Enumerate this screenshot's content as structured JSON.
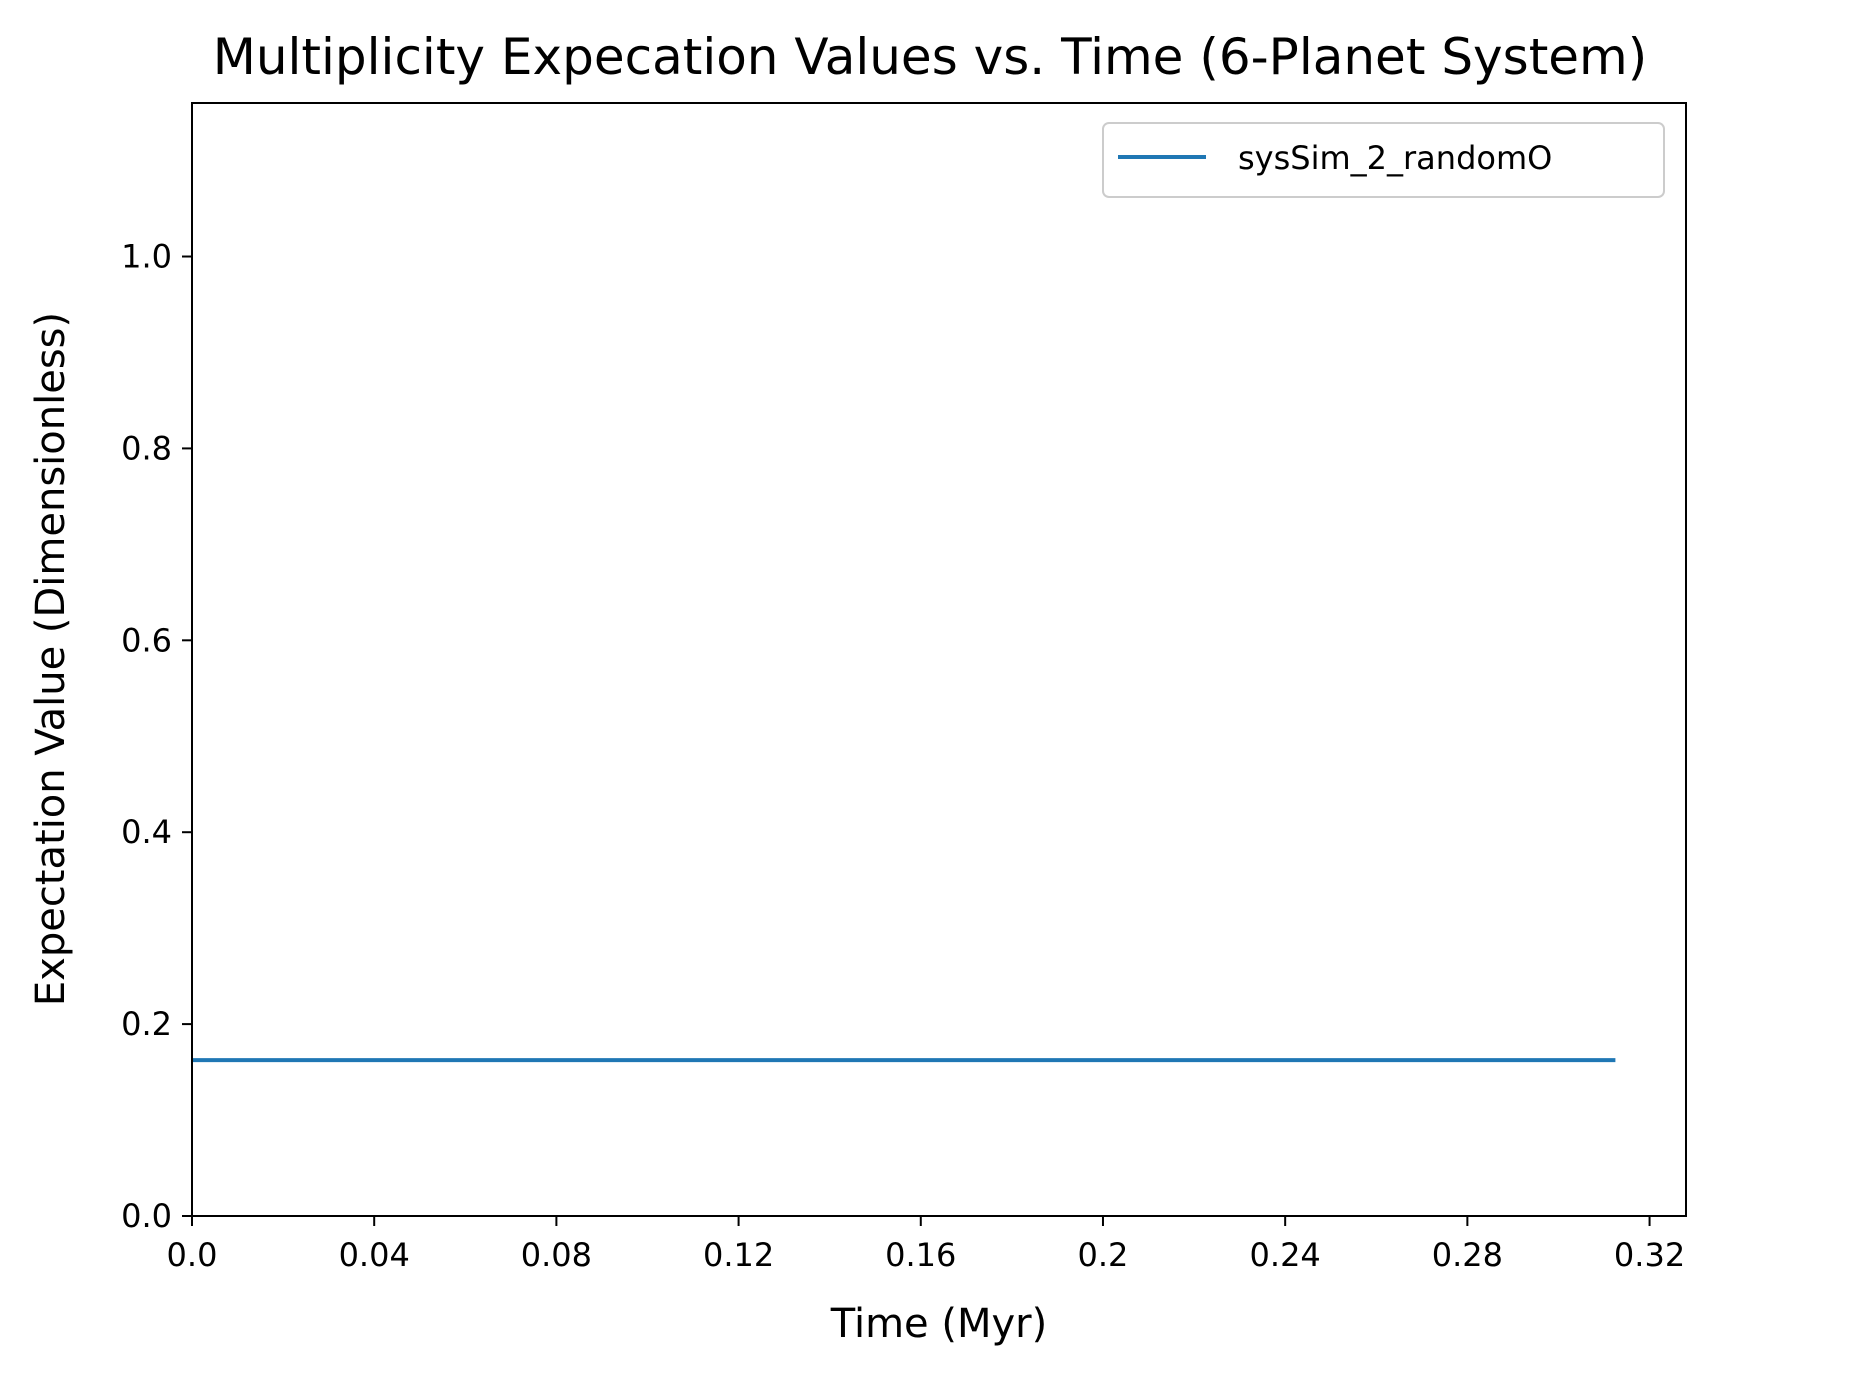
{
  "chart_data": {
    "type": "line",
    "title": "Multiplicity Expecation Values vs. Time (6-Planet System)",
    "xlabel": "Time (Myr)",
    "ylabel": "Expectation Value (Dimensionless)",
    "xlim": [
      0,
      0.328
    ],
    "ylim": [
      0,
      1.16
    ],
    "xticks": [
      0,
      0.04,
      0.08,
      0.12,
      0.16,
      0.2,
      0.24,
      0.28,
      0.32
    ],
    "xtick_labels": [
      "0.0",
      "0.04",
      "0.08",
      "0.12",
      "0.16",
      "0.2",
      "0.24",
      "0.28",
      "0.32"
    ],
    "yticks": [
      0,
      0.2,
      0.4,
      0.6,
      0.8,
      1.0
    ],
    "ytick_labels": [
      "0.0",
      "0.2",
      "0.4",
      "0.6",
      "0.8",
      "1.0"
    ],
    "grid": false,
    "legend_position": "top-right",
    "series": [
      {
        "name": "sysSim_2_randomO",
        "color": "#1f77b4",
        "x": [
          0,
          0.3125
        ],
        "y": [
          0.1625,
          0.1625
        ]
      }
    ]
  }
}
